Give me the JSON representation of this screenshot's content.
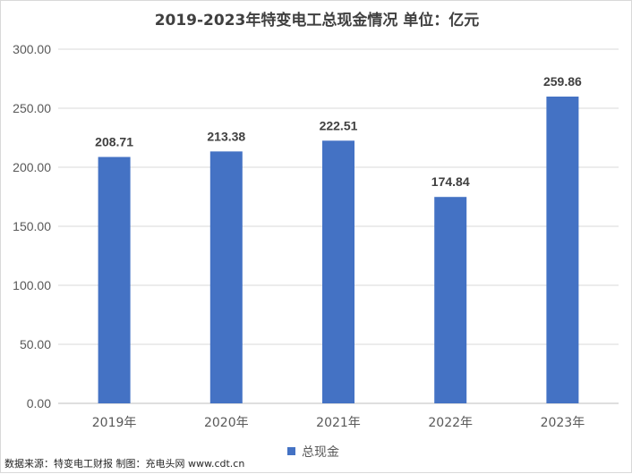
{
  "chart_data": {
    "type": "bar",
    "title": "2019-2023年特变电工总现金情况 单位：亿元",
    "categories": [
      "2019年",
      "2020年",
      "2021年",
      "2022年",
      "2023年"
    ],
    "series": [
      {
        "name": "总现金",
        "values": [
          208.71,
          213.38,
          222.51,
          174.84,
          259.86
        ],
        "color": "#4472c4"
      }
    ],
    "data_labels": [
      "208.71",
      "213.38",
      "222.51",
      "174.84",
      "259.86"
    ],
    "y_ticks": [
      "0.00",
      "50.00",
      "100.00",
      "150.00",
      "200.00",
      "250.00",
      "300.00"
    ],
    "ylim": [
      0,
      300
    ],
    "grid": true,
    "legend_position": "bottom"
  },
  "source_note": "数据来源：特变电工财报  制图：充电头网 www.cdt.cn",
  "colors": {
    "bar": "#4472c4",
    "grid": "#d9d9d9",
    "axis": "#bfbfbf"
  }
}
